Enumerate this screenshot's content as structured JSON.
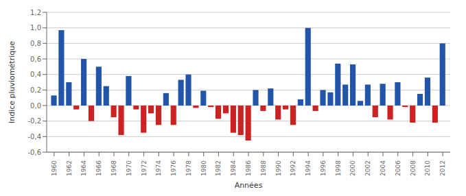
{
  "chart_data": {
    "type": "bar",
    "xlabel": "Années",
    "ylabel": "Indice pluviométrique",
    "x": [
      1960,
      1961,
      1962,
      1963,
      1964,
      1965,
      1966,
      1967,
      1968,
      1969,
      1970,
      1971,
      1972,
      1973,
      1974,
      1975,
      1976,
      1977,
      1978,
      1979,
      1980,
      1981,
      1982,
      1983,
      1984,
      1985,
      1986,
      1987,
      1988,
      1989,
      1990,
      1991,
      1992,
      1993,
      1994,
      1995,
      1996,
      1997,
      1998,
      1999,
      2000,
      2001,
      2002,
      2003,
      2004,
      2005,
      2006,
      2007,
      2008,
      2009,
      2010,
      2011,
      2012
    ],
    "values": [
      0.13,
      0.97,
      0.3,
      -0.05,
      0.6,
      -0.2,
      0.5,
      0.25,
      -0.15,
      -0.38,
      0.38,
      -0.05,
      -0.35,
      -0.1,
      -0.25,
      0.16,
      -0.25,
      0.33,
      0.4,
      -0.03,
      0.19,
      -0.02,
      -0.17,
      -0.1,
      -0.35,
      -0.38,
      -0.45,
      0.2,
      -0.07,
      0.22,
      -0.18,
      -0.05,
      -0.25,
      0.08,
      1.0,
      -0.07,
      0.2,
      0.17,
      0.54,
      0.27,
      0.53,
      0.06,
      0.27,
      -0.15,
      0.28,
      -0.18,
      0.3,
      -0.02,
      -0.22,
      0.15,
      0.36,
      -0.22,
      0.8
    ],
    "colors": [
      "#2255AA",
      "#2255AA",
      "#2255AA",
      "#CC2222",
      "#2255AA",
      "#CC2222",
      "#2255AA",
      "#2255AA",
      "#CC2222",
      "#CC2222",
      "#2255AA",
      "#CC2222",
      "#CC2222",
      "#CC2222",
      "#CC2222",
      "#2255AA",
      "#CC2222",
      "#2255AA",
      "#2255AA",
      "#CC2222",
      "#2255AA",
      "#CC2222",
      "#CC2222",
      "#CC2222",
      "#CC2222",
      "#CC2222",
      "#CC2222",
      "#2255AA",
      "#CC2222",
      "#2255AA",
      "#CC2222",
      "#CC2222",
      "#CC2222",
      "#2255AA",
      "#2255AA",
      "#CC2222",
      "#2255AA",
      "#2255AA",
      "#2255AA",
      "#2255AA",
      "#2255AA",
      "#2255AA",
      "#2255AA",
      "#CC2222",
      "#2255AA",
      "#CC2222",
      "#2255AA",
      "#CC2222",
      "#CC2222",
      "#2255AA",
      "#2255AA",
      "#CC2222",
      "#2255AA"
    ],
    "xlim": [
      1959,
      2013
    ],
    "xticks": [
      1960,
      1962,
      1964,
      1966,
      1968,
      1970,
      1972,
      1974,
      1976,
      1978,
      1980,
      1982,
      1984,
      1986,
      1988,
      1990,
      1992,
      1994,
      1996,
      1998,
      2000,
      2002,
      2004,
      2006,
      2008,
      2010,
      2012
    ],
    "ylim": [
      -0.6,
      1.2
    ],
    "yticks": [
      {
        "value": -0.6,
        "label": "-0,6"
      },
      {
        "value": -0.4,
        "label": "-0,4"
      },
      {
        "value": -0.2,
        "label": "-0,2"
      },
      {
        "value": 0.0,
        "label": "0,0"
      },
      {
        "value": 0.2,
        "label": "0,2"
      },
      {
        "value": 0.4,
        "label": "0,4"
      },
      {
        "value": 0.6,
        "label": "0,6"
      },
      {
        "value": 0.8,
        "label": "0,8"
      },
      {
        "value": 1.0,
        "label": "1,0"
      },
      {
        "value": 1.2,
        "label": "1,2"
      }
    ],
    "grid": true
  }
}
